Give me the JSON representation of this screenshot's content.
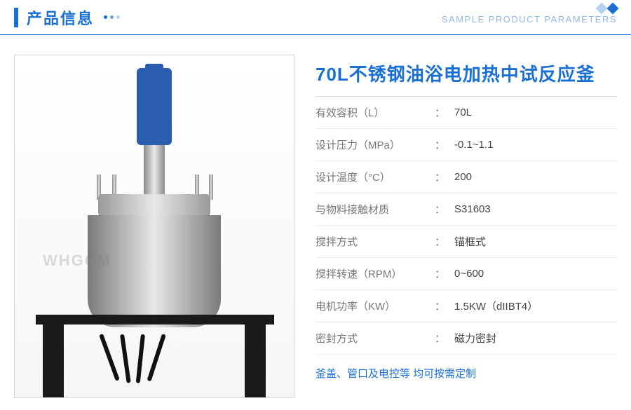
{
  "header": {
    "title": "产品信息",
    "subtitle": "SAMPLE PRODUCT PARAMETERS",
    "accent_color": "#1a6fd4",
    "dot_colors": [
      "#1a6fd4",
      "#6aa3e6",
      "#b7d2f2"
    ],
    "diamond_colors": [
      "#b7d2f2",
      "#1a6fd4"
    ]
  },
  "product": {
    "title": "70L不锈钢油浴电加热中试反应釜",
    "watermark": "WHGCM",
    "specs": [
      {
        "label": "有效容积（L）",
        "value": "70L"
      },
      {
        "label": "设计压力（MPa）",
        "value": "-0.1~1.1"
      },
      {
        "label": "设计温度（°C）",
        "value": "200"
      },
      {
        "label": "与物料接触材质",
        "value": "S31603"
      },
      {
        "label": "搅拌方式",
        "value": "锚框式"
      },
      {
        "label": "搅拌转速（RPM）",
        "value": "0~600"
      },
      {
        "label": "电机功率（KW）",
        "value": "1.5KW（dIIBT4）"
      },
      {
        "label": "密封方式",
        "value": "磁力密封"
      }
    ],
    "note": "釜盖、管口及电控等 均可按需定制"
  },
  "style": {
    "title_color": "#1a6fd4",
    "label_color": "#777777",
    "value_color": "#444444",
    "border_color": "#ececec",
    "image_border": "#d8d8d8",
    "background": "#ffffff"
  }
}
